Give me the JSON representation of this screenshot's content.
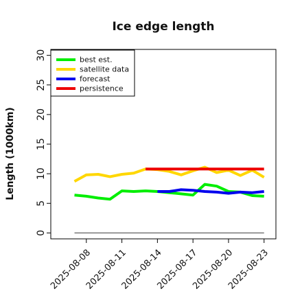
{
  "chart_data": {
    "type": "line",
    "title": "Ice edge length",
    "xlabel": "",
    "ylabel": "Length (1000km)",
    "x_range": [
      "2025-08-05",
      "2025-08-24"
    ],
    "ylim": [
      -1,
      31
    ],
    "yticks": [
      0,
      5,
      10,
      15,
      20,
      25,
      30
    ],
    "xticks": [
      {
        "date": "2025-08-08",
        "label": "2025-08-08",
        "color": "#111111"
      },
      {
        "date": "2025-08-11",
        "label": "2025-08-11",
        "color": "#111111"
      },
      {
        "date": "2025-08-14",
        "label": "2025-08-14",
        "color": "#1a7a1a"
      },
      {
        "date": "2025-08-17",
        "label": "2025-08-17",
        "color": "#111111"
      },
      {
        "date": "2025-08-20",
        "label": "2025-08-20",
        "color": "#111111"
      },
      {
        "date": "2025-08-23",
        "label": "2025-08-23",
        "color": "#111111"
      }
    ],
    "grid": false,
    "legend_position": "top-left",
    "baseline": {
      "y": 0,
      "color": "#777777"
    },
    "series": [
      {
        "name": "best est.",
        "color": "#00ee00",
        "points": [
          [
            "2025-08-07",
            6.4
          ],
          [
            "2025-08-08",
            6.2
          ],
          [
            "2025-08-09",
            5.9
          ],
          [
            "2025-08-10",
            5.7
          ],
          [
            "2025-08-11",
            7.1
          ],
          [
            "2025-08-12",
            7.0
          ],
          [
            "2025-08-13",
            7.1
          ],
          [
            "2025-08-14",
            7.0
          ],
          [
            "2025-08-15",
            6.8
          ],
          [
            "2025-08-16",
            6.6
          ],
          [
            "2025-08-17",
            6.4
          ],
          [
            "2025-08-18",
            8.2
          ],
          [
            "2025-08-19",
            7.9
          ],
          [
            "2025-08-20",
            7.0
          ],
          [
            "2025-08-21",
            6.9
          ],
          [
            "2025-08-22",
            6.3
          ],
          [
            "2025-08-23",
            6.2
          ]
        ]
      },
      {
        "name": "satellite data",
        "color": "#ffd700",
        "points": [
          [
            "2025-08-07",
            8.7
          ],
          [
            "2025-08-08",
            9.8
          ],
          [
            "2025-08-09",
            9.9
          ],
          [
            "2025-08-10",
            9.5
          ],
          [
            "2025-08-11",
            9.9
          ],
          [
            "2025-08-12",
            10.1
          ],
          [
            "2025-08-13",
            10.8
          ],
          [
            "2025-08-14",
            10.7
          ],
          [
            "2025-08-15",
            10.4
          ],
          [
            "2025-08-16",
            9.8
          ],
          [
            "2025-08-17",
            10.5
          ],
          [
            "2025-08-18",
            11.1
          ],
          [
            "2025-08-19",
            10.2
          ],
          [
            "2025-08-20",
            10.6
          ],
          [
            "2025-08-21",
            9.7
          ],
          [
            "2025-08-22",
            10.6
          ],
          [
            "2025-08-23",
            9.4
          ]
        ]
      },
      {
        "name": "forecast",
        "color": "#0000ee",
        "points": [
          [
            "2025-08-14",
            7.0
          ],
          [
            "2025-08-15",
            7.0
          ],
          [
            "2025-08-16",
            7.3
          ],
          [
            "2025-08-17",
            7.2
          ],
          [
            "2025-08-18",
            7.0
          ],
          [
            "2025-08-19",
            6.9
          ],
          [
            "2025-08-20",
            6.7
          ],
          [
            "2025-08-21",
            6.9
          ],
          [
            "2025-08-22",
            6.8
          ],
          [
            "2025-08-23",
            7.0
          ]
        ]
      },
      {
        "name": "persistence",
        "color": "#ee0000",
        "points": [
          [
            "2025-08-13",
            10.8
          ],
          [
            "2025-08-23",
            10.8
          ]
        ]
      }
    ]
  }
}
